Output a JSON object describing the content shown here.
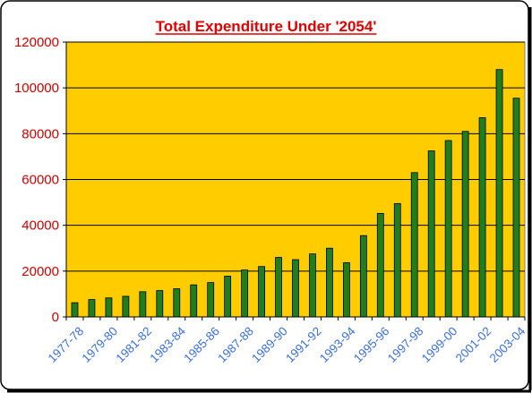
{
  "chart_data": {
    "type": "bar",
    "title": "Total Expenditure Under '2054'",
    "xlabel": "",
    "ylabel": "",
    "ylim": [
      0,
      120000
    ],
    "yticks": [
      "0",
      "20000",
      "40000",
      "60000",
      "80000",
      "100000",
      "120000"
    ],
    "grid": true,
    "legend": "none",
    "colors": {
      "plot_background": "#ffcc00",
      "bar": "#1f7f1f",
      "title": "#e00000",
      "ytick": "#cc0000",
      "xtick": "#3a6fd8"
    },
    "categories": [
      "1977-78",
      "1978-79",
      "1979-80",
      "1980-81",
      "1981-82",
      "1982-83",
      "1983-84",
      "1984-85",
      "1985-86",
      "1986-87",
      "1987-88",
      "1988-89",
      "1989-90",
      "1990-91",
      "1991-92",
      "1992-93",
      "1993-94",
      "1994-95",
      "1995-96",
      "1996-97",
      "1997-98",
      "1998-99",
      "1999-00",
      "2000-01",
      "2001-02",
      "2002-03",
      "2003-04"
    ],
    "tick_labels": [
      "1977-78",
      "",
      "1979-80",
      "",
      "1981-82",
      "",
      "1983-84",
      "",
      "1985-86",
      "",
      "1987-88",
      "",
      "1989-90",
      "",
      "1991-92",
      "",
      "1993-94",
      "",
      "1995-96",
      "",
      "1997-98",
      "",
      "1999-00",
      "",
      "2001-02",
      "",
      "2003-04"
    ],
    "values": [
      6200,
      7600,
      8300,
      9000,
      11000,
      11500,
      12300,
      14000,
      15000,
      17800,
      20500,
      22000,
      26000,
      25000,
      27500,
      30000,
      23700,
      35500,
      45200,
      49500,
      63000,
      72500,
      77000,
      81000,
      87000,
      108000,
      95500
    ]
  }
}
